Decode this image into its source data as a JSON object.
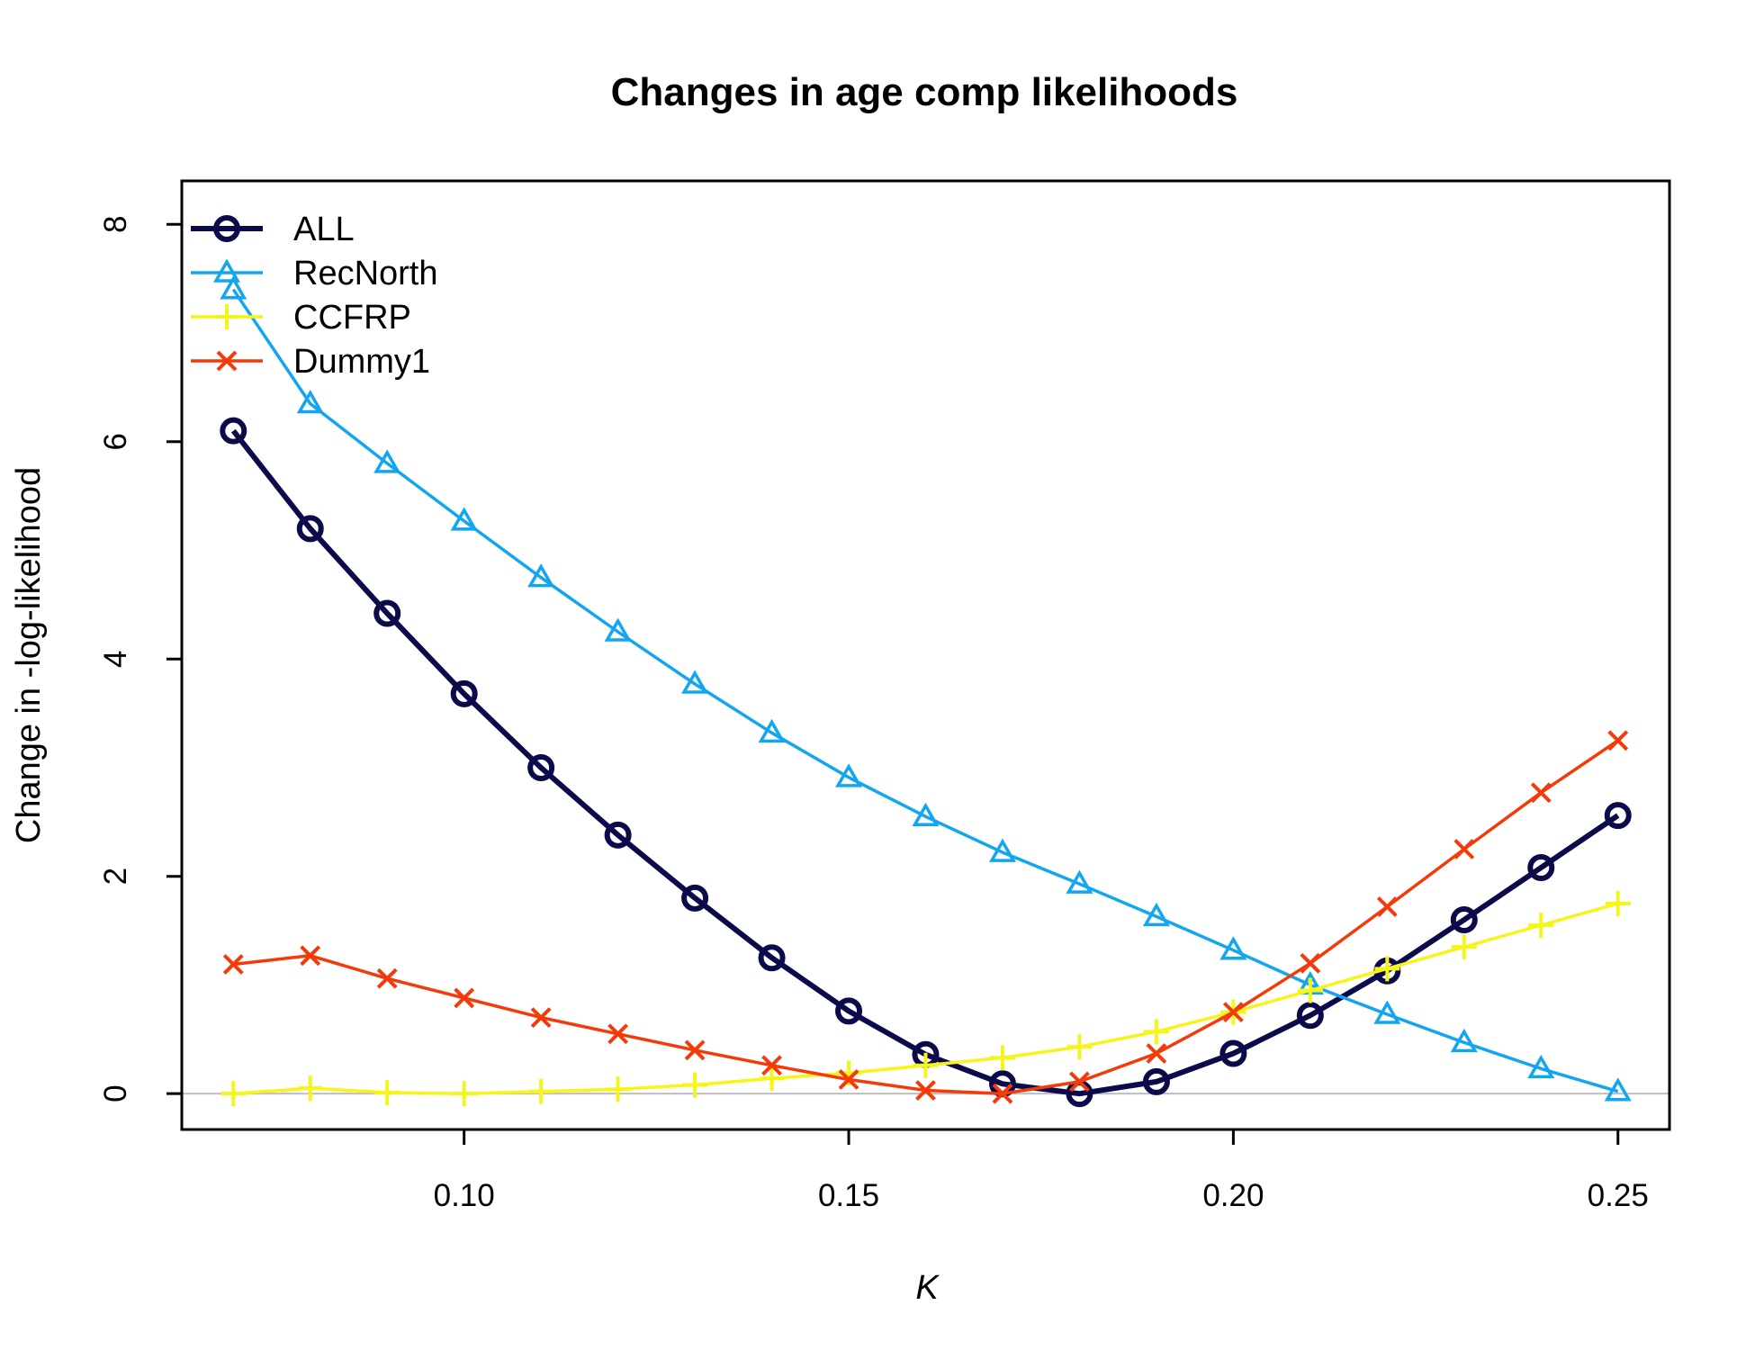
{
  "chart_data": {
    "type": "line",
    "title": "Changes in age comp likelihoods",
    "xlabel": "K",
    "ylabel": "Change in -log-likelihood",
    "xlim": [
      0.0633,
      0.2567
    ],
    "ylim": [
      -0.33,
      8.4
    ],
    "x_ticks": [
      0.1,
      0.15,
      0.2,
      0.25
    ],
    "x_tick_labels": [
      "0.10",
      "0.15",
      "0.20",
      "0.25"
    ],
    "y_ticks": [
      0,
      2,
      4,
      6,
      8
    ],
    "y_tick_labels": [
      "0",
      "2",
      "4",
      "6",
      "8"
    ],
    "reference_line_y": 0,
    "legend_position": "top-left",
    "x": [
      0.07,
      0.08,
      0.09,
      0.1,
      0.11,
      0.12,
      0.13,
      0.14,
      0.15,
      0.16,
      0.17,
      0.18,
      0.19,
      0.2,
      0.21,
      0.22,
      0.23,
      0.24,
      0.25
    ],
    "series": [
      {
        "name": "ALL",
        "color": "#0b0a4a",
        "marker": "circle",
        "values": [
          6.1,
          5.2,
          4.42,
          3.68,
          3.0,
          2.38,
          1.8,
          1.25,
          0.76,
          0.36,
          0.09,
          0.0,
          0.11,
          0.37,
          0.72,
          1.13,
          1.6,
          2.08,
          2.56
        ]
      },
      {
        "name": "RecNorth",
        "color": "#12a6f0",
        "marker": "triangle",
        "values": [
          7.4,
          6.35,
          5.8,
          5.27,
          4.75,
          4.25,
          3.77,
          3.32,
          2.91,
          2.55,
          2.22,
          1.93,
          1.63,
          1.32,
          1.0,
          0.73,
          0.47,
          0.23,
          0.02
        ]
      },
      {
        "name": "CCFRP",
        "color": "#f5f51a",
        "marker": "plus",
        "values": [
          0.0,
          0.05,
          0.01,
          0.0,
          0.02,
          0.04,
          0.08,
          0.14,
          0.19,
          0.26,
          0.33,
          0.43,
          0.57,
          0.75,
          0.95,
          1.15,
          1.35,
          1.55,
          1.75
        ]
      },
      {
        "name": "Dummy1",
        "color": "#f53a0a",
        "marker": "x",
        "values": [
          1.19,
          1.27,
          1.06,
          0.88,
          0.7,
          0.55,
          0.4,
          0.26,
          0.13,
          0.03,
          0.0,
          0.11,
          0.37,
          0.75,
          1.2,
          1.72,
          2.25,
          2.77,
          3.25
        ]
      }
    ]
  }
}
